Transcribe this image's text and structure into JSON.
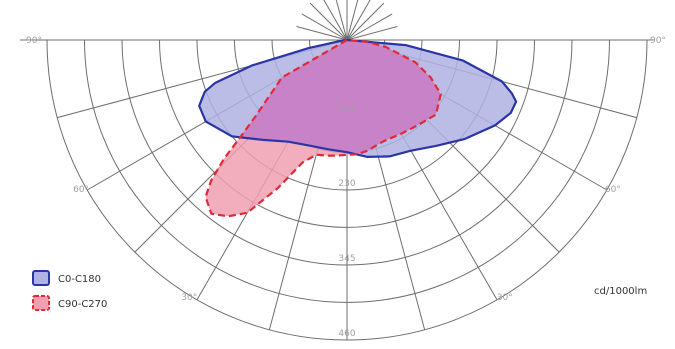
{
  "chart_data": {
    "type": "polar",
    "title": "",
    "unit_label": "cd/1000lm",
    "angular_ticks": [
      {
        "angle": -90,
        "label": "90°"
      },
      {
        "angle": -60,
        "label": "60°"
      },
      {
        "angle": -30,
        "label": "30°"
      },
      {
        "angle": 30,
        "label": "30°"
      },
      {
        "angle": 60,
        "label": "60°"
      },
      {
        "angle": 90,
        "label": "90°"
      }
    ],
    "radial_ticks": [
      115,
      230,
      345,
      460
    ],
    "radial_max": 460,
    "grid": true,
    "legend_position": "bottom-left",
    "colors": {
      "series_1_stroke": "#2a35a6",
      "series_1_fill": "#b0b2e3",
      "series_2_stroke": "#e02b36",
      "series_2_fill": "#f0a0b0",
      "overlap_fill": "#c882c8",
      "grid": "#6e6e6e"
    },
    "series": [
      {
        "name": "C0-C180",
        "style": "solid",
        "points": [
          [
            -90,
            0
          ],
          [
            -82,
            10
          ],
          [
            -78,
            60
          ],
          [
            -75,
            150
          ],
          [
            -72,
            212
          ],
          [
            -70,
            232
          ],
          [
            -66,
            248
          ],
          [
            -60,
            250
          ],
          [
            -50,
            230
          ],
          [
            -40,
            200
          ],
          [
            -30,
            180
          ],
          [
            -20,
            172
          ],
          [
            -10,
            170
          ],
          [
            0,
            172
          ],
          [
            10,
            182
          ],
          [
            20,
            190
          ],
          [
            30,
            196
          ],
          [
            40,
            212
          ],
          [
            50,
            236
          ],
          [
            60,
            262
          ],
          [
            66,
            275
          ],
          [
            70,
            276
          ],
          [
            72,
            266
          ],
          [
            75,
            246
          ],
          [
            80,
            180
          ],
          [
            85,
            90
          ],
          [
            90,
            0
          ]
        ]
      },
      {
        "name": "C90-C270",
        "style": "dashed",
        "points": [
          [
            -90,
            0
          ],
          [
            -60,
            115
          ],
          [
            -50,
            185
          ],
          [
            -48,
            215
          ],
          [
            -46,
            262
          ],
          [
            -44,
            300
          ],
          [
            -42,
            324
          ],
          [
            -38,
            338
          ],
          [
            -34,
            326
          ],
          [
            -30,
            306
          ],
          [
            -25,
            250
          ],
          [
            -20,
            200
          ],
          [
            -15,
            182
          ],
          [
            -10,
            180
          ],
          [
            -5,
            178
          ],
          [
            0,
            176
          ],
          [
            5,
            176
          ],
          [
            10,
            173
          ],
          [
            20,
            165
          ],
          [
            30,
            166
          ],
          [
            40,
            170
          ],
          [
            50,
            178
          ],
          [
            60,
            166
          ],
          [
            66,
            140
          ],
          [
            72,
            110
          ],
          [
            80,
            60
          ],
          [
            85,
            30
          ],
          [
            90,
            0
          ]
        ]
      }
    ]
  }
}
